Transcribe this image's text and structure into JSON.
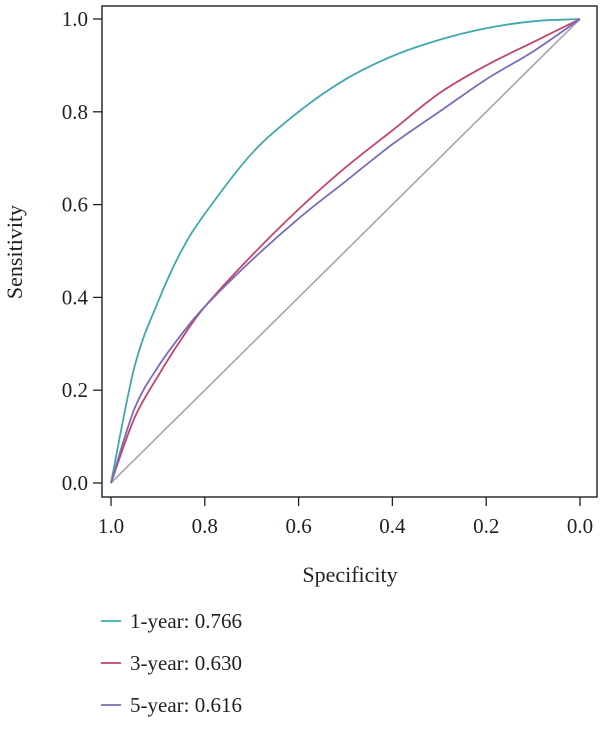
{
  "chart_data": {
    "type": "line",
    "title": "",
    "xlabel": "Specificity",
    "ylabel": "Sensitivity",
    "x_reversed": true,
    "xlim": [
      1.0,
      0.0
    ],
    "ylim": [
      0.0,
      1.0
    ],
    "x_ticks": [
      "1.0",
      "0.8",
      "0.6",
      "0.4",
      "0.2",
      "0.0"
    ],
    "y_ticks": [
      "0.0",
      "0.2",
      "0.4",
      "0.6",
      "0.8",
      "1.0"
    ],
    "grid": false,
    "legend_position": "bottom-left",
    "reference_line": {
      "from": [
        1.0,
        0.0
      ],
      "to": [
        0.0,
        1.0
      ],
      "color": "#a6a6a6"
    },
    "series": [
      {
        "name": "1-year: 0.766",
        "color": "#3fa9ab",
        "x": [
          1.0,
          0.95,
          0.9,
          0.85,
          0.8,
          0.7,
          0.6,
          0.5,
          0.4,
          0.3,
          0.2,
          0.1,
          0.0
        ],
        "y": [
          0.0,
          0.25,
          0.39,
          0.5,
          0.58,
          0.71,
          0.8,
          0.87,
          0.92,
          0.955,
          0.98,
          0.995,
          1.0
        ]
      },
      {
        "name": "3-year: 0.630",
        "color": "#c2456d",
        "x": [
          1.0,
          0.95,
          0.9,
          0.85,
          0.8,
          0.7,
          0.6,
          0.5,
          0.4,
          0.3,
          0.2,
          0.1,
          0.0
        ],
        "y": [
          0.0,
          0.14,
          0.23,
          0.31,
          0.38,
          0.49,
          0.59,
          0.68,
          0.76,
          0.84,
          0.9,
          0.95,
          1.0
        ]
      },
      {
        "name": "5-year: 0.616",
        "color": "#7b6bb8",
        "x": [
          1.0,
          0.95,
          0.9,
          0.85,
          0.8,
          0.7,
          0.6,
          0.5,
          0.4,
          0.3,
          0.2,
          0.1,
          0.0
        ],
        "y": [
          0.0,
          0.16,
          0.25,
          0.32,
          0.38,
          0.48,
          0.57,
          0.65,
          0.73,
          0.8,
          0.87,
          0.93,
          1.0
        ]
      }
    ]
  }
}
